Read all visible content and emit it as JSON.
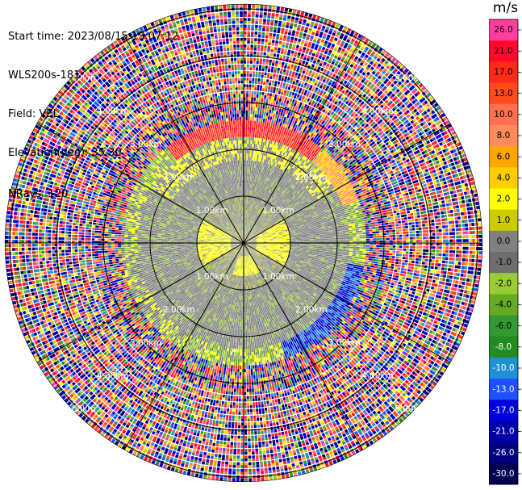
{
  "header": {
    "start_time": "Start time: 2023/08/15 13:07:12",
    "instrument": "WLS200s-181",
    "field": "Field: VEL",
    "elevation": "Elevation(deg): 35.30",
    "nrays": "NRays: 120"
  },
  "colorbar": {
    "unit": "m/s",
    "ticks": [
      "26.0",
      "21.0",
      "17.0",
      "13.0",
      "10.0",
      "8.0",
      "6.0",
      "4.0",
      "2.0",
      "1.0",
      "0.0",
      "-1.0",
      "-2.0",
      "-4.0",
      "-6.0",
      "-8.0",
      "-10.0",
      "-13.0",
      "-17.0",
      "-21.0",
      "-26.0",
      "-30.0"
    ],
    "colors": [
      "#ff3ea0",
      "#ff0a2e",
      "#ff2a1a",
      "#ff4a1a",
      "#ff7050",
      "#ff8a5a",
      "#ffa500",
      "#ffcc00",
      "#ffff00",
      "#cccc00",
      "#808080",
      "#6e6e6e",
      "#99cc33",
      "#66aa22",
      "#339933",
      "#228b22",
      "#1e90d6",
      "#1e50ff",
      "#0000dd",
      "#0000aa",
      "#000080",
      "#000050"
    ]
  },
  "chart_data": {
    "type": "heatmap",
    "title": "",
    "field": "VEL",
    "nrays": 120,
    "elevation_deg": 35.3,
    "range_rings_km": [
      {
        "km": 1.0,
        "label": "1.00km"
      },
      {
        "km": 2.0,
        "label": "2.00km"
      },
      {
        "km": 3.0,
        "label": "3.00km"
      },
      {
        "km": 4.0,
        "label": "4.00km"
      },
      {
        "km": 5.0,
        "label": "5.00km"
      }
    ],
    "max_range_km": 5.1,
    "value_range": [
      -30,
      26
    ],
    "velocity_structure": [
      {
        "range_km": [
          0.0,
          0.3
        ],
        "description_values": [
          0.0,
          1.0
        ]
      },
      {
        "range_km": [
          0.3,
          1.0
        ],
        "description_values": [
          -1.0,
          0.0,
          1.0,
          2.0
        ]
      },
      {
        "range_km": [
          1.0,
          2.3
        ],
        "description_values": [
          -2.0,
          -1.0,
          0.0
        ]
      },
      {
        "range_km": [
          2.3,
          2.6
        ],
        "description_values": [
          -17.0,
          -13.0,
          17.0,
          21.0
        ]
      },
      {
        "range_km": [
          2.6,
          5.1
        ],
        "description_values": [
          -30.0,
          26.0
        ]
      }
    ]
  }
}
